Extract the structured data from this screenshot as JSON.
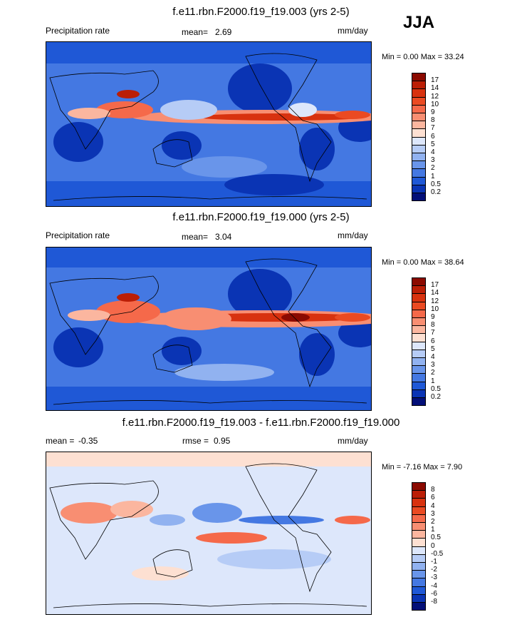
{
  "season": "JJA",
  "panels": [
    {
      "title": "f.e11.rbn.F2000.f19_f19.003 (yrs 2-5)",
      "variable": "Precipitation rate",
      "mean_label": "mean=",
      "mean_value": "2.69",
      "units": "mm/day",
      "min_max": "Min =   0.00 Max =  33.24",
      "colorbar": {
        "labels": [
          "17",
          "14",
          "12",
          "10",
          "9",
          "8",
          "7",
          "6",
          "5",
          "4",
          "3",
          "2",
          "1",
          "0.5",
          "0.2"
        ],
        "colors": [
          "#8b0a00",
          "#bb1e06",
          "#d8320f",
          "#ea4a22",
          "#f5694a",
          "#f88e72",
          "#fbb69f",
          "#fde0d2",
          "#dde7fb",
          "#b6ccf6",
          "#91b2f0",
          "#6995ea",
          "#4478e2",
          "#1f58d6",
          "#0a34b4",
          "#030f78"
        ]
      }
    },
    {
      "title": "f.e11.rbn.F2000.f19_f19.000 (yrs 2-5)",
      "variable": "Precipitation rate",
      "mean_label": "mean=",
      "mean_value": "3.04",
      "units": "mm/day",
      "min_max": "Min =   0.00 Max =  38.64",
      "colorbar": {
        "labels": [
          "17",
          "14",
          "12",
          "10",
          "9",
          "8",
          "7",
          "6",
          "5",
          "4",
          "3",
          "2",
          "1",
          "0.5",
          "0.2"
        ],
        "colors": [
          "#8b0a00",
          "#bb1e06",
          "#d8320f",
          "#ea4a22",
          "#f5694a",
          "#f88e72",
          "#fbb69f",
          "#fde0d2",
          "#dde7fb",
          "#b6ccf6",
          "#91b2f0",
          "#6995ea",
          "#4478e2",
          "#1f58d6",
          "#0a34b4",
          "#030f78"
        ]
      }
    },
    {
      "title": "f.e11.rbn.F2000.f19_f19.003 - f.e11.rbn.F2000.f19_f19.000",
      "mean_label": "mean = ",
      "mean_value": "-0.35",
      "rmse_label": "rmse =",
      "rmse_value": "0.95",
      "units": "mm/day",
      "min_max": "Min =  -7.16 Max =   7.90",
      "colorbar": {
        "labels": [
          "8",
          "6",
          "4",
          "3",
          "2",
          "1",
          "0.5",
          "0",
          "-0.5",
          "-1",
          "-2",
          "-3",
          "-4",
          "-6",
          "-8"
        ],
        "colors": [
          "#8b0a00",
          "#bb1e06",
          "#d8320f",
          "#ea4a22",
          "#f5694a",
          "#f88e72",
          "#fbb69f",
          "#fde0d2",
          "#dde7fb",
          "#b6ccf6",
          "#91b2f0",
          "#6995ea",
          "#4478e2",
          "#1f58d6",
          "#0a34b4",
          "#030f78"
        ]
      }
    }
  ]
}
